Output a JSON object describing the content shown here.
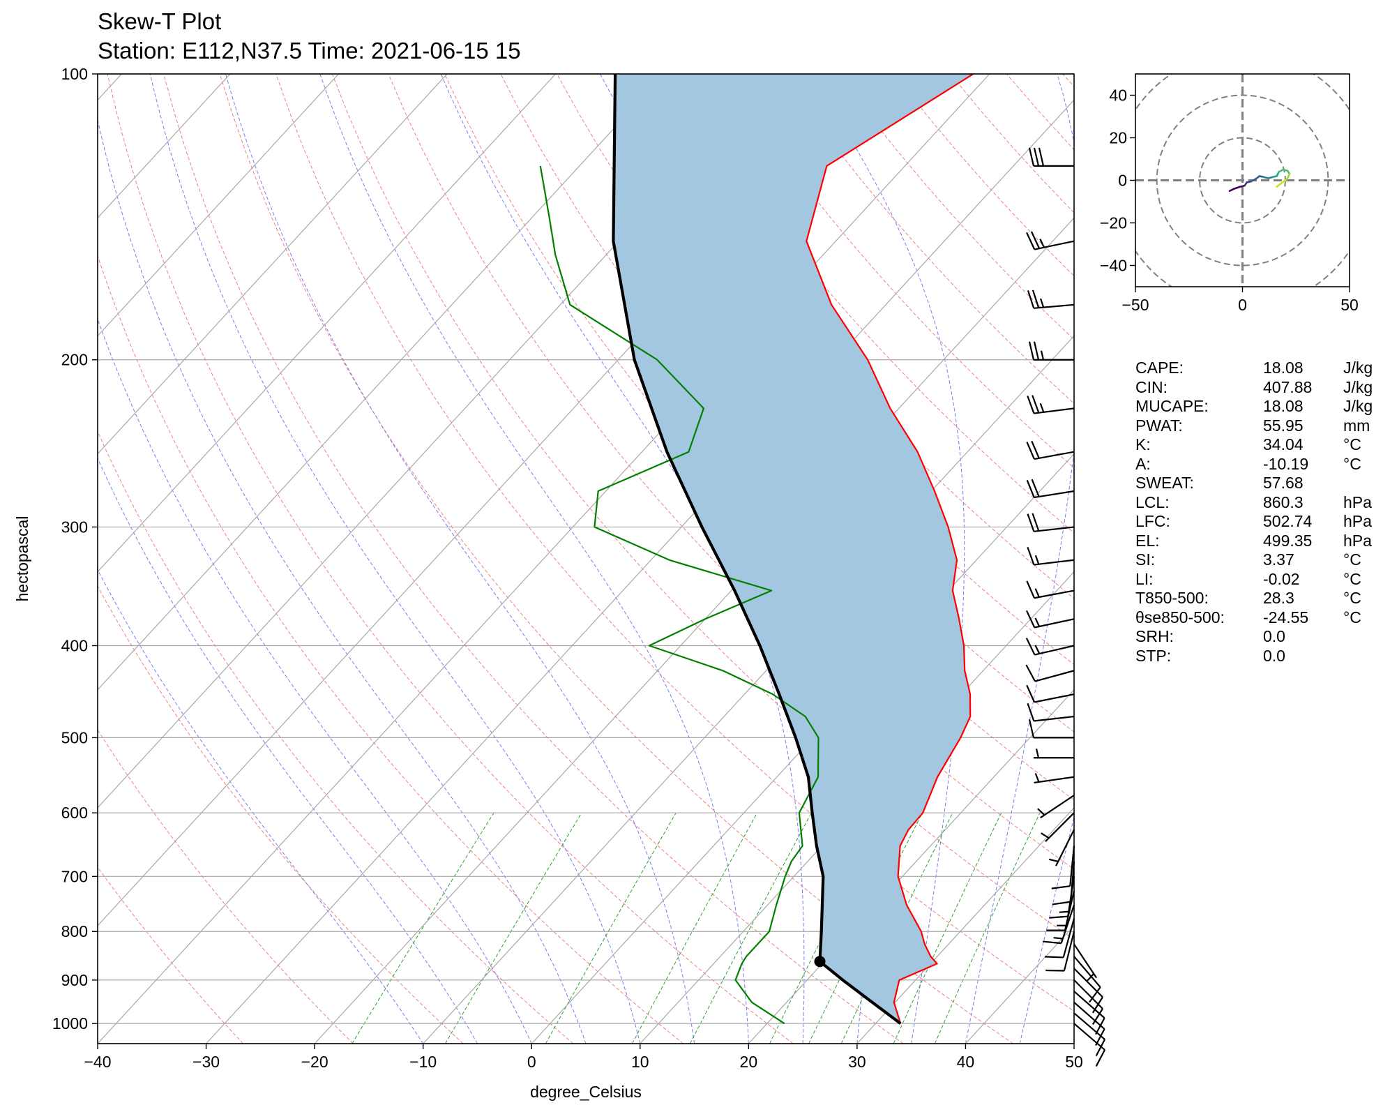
{
  "title": "Skew-T Plot",
  "subtitle": "Station: E112,N37.5 Time: 2021-06-15 15",
  "chart_data": {
    "type": "skew-t",
    "xlabel": "degree_Celsius",
    "ylabel": "hectopascal",
    "xlim": [
      -40,
      50
    ],
    "ylim": [
      1050,
      100
    ],
    "x_ticks": [
      "−40",
      "−30",
      "−20",
      "−10",
      "0",
      "10",
      "20",
      "30",
      "40",
      "50"
    ],
    "x_tick_values": [
      -40,
      -30,
      -20,
      -10,
      0,
      10,
      20,
      30,
      40,
      50
    ],
    "y_ticks": [
      "100",
      "200",
      "300",
      "400",
      "500",
      "600",
      "700",
      "800",
      "900",
      "1000"
    ],
    "y_tick_values": [
      100,
      200,
      300,
      400,
      500,
      600,
      700,
      800,
      900,
      1000
    ],
    "grid": true,
    "temperature_color": "#ff0000",
    "dewpoint_color": "#008000",
    "parcel_color": "#000000",
    "cape_fill_color": "#a3c7e0",
    "temperature": [
      {
        "p": 1000,
        "t": 32.3
      },
      {
        "p": 950,
        "t": 29.9
      },
      {
        "p": 900,
        "t": 28.5
      },
      {
        "p": 865,
        "t": 30.6
      },
      {
        "p": 850,
        "t": 29.4
      },
      {
        "p": 825,
        "t": 27.8
      },
      {
        "p": 800,
        "t": 26.4
      },
      {
        "p": 750,
        "t": 22.8
      },
      {
        "p": 700,
        "t": 19.6
      },
      {
        "p": 650,
        "t": 17.2
      },
      {
        "p": 625,
        "t": 16.6
      },
      {
        "p": 600,
        "t": 16.5
      },
      {
        "p": 550,
        "t": 14.8
      },
      {
        "p": 500,
        "t": 13.6
      },
      {
        "p": 475,
        "t": 12.7
      },
      {
        "p": 450,
        "t": 10.8
      },
      {
        "p": 425,
        "t": 8.3
      },
      {
        "p": 400,
        "t": 6.1
      },
      {
        "p": 375,
        "t": 3.4
      },
      {
        "p": 350,
        "t": 0.4
      },
      {
        "p": 325,
        "t": -1.8
      },
      {
        "p": 300,
        "t": -5.4
      },
      {
        "p": 275,
        "t": -9.7
      },
      {
        "p": 250,
        "t": -14.6
      },
      {
        "p": 225,
        "t": -20.8
      },
      {
        "p": 200,
        "t": -27.0
      },
      {
        "p": 175,
        "t": -35.0
      },
      {
        "p": 150,
        "t": -42.7
      },
      {
        "p": 125,
        "t": -47.2
      },
      {
        "p": 100,
        "t": -41.5
      }
    ],
    "dewpoint": [
      {
        "p": 1000,
        "t": 21.6
      },
      {
        "p": 950,
        "t": 16.8
      },
      {
        "p": 900,
        "t": 13.4
      },
      {
        "p": 865,
        "t": 12.6
      },
      {
        "p": 850,
        "t": 12.4
      },
      {
        "p": 825,
        "t": 12.4
      },
      {
        "p": 800,
        "t": 12.4
      },
      {
        "p": 750,
        "t": 10.8
      },
      {
        "p": 700,
        "t": 9.2
      },
      {
        "p": 675,
        "t": 8.5
      },
      {
        "p": 650,
        "t": 8.2
      },
      {
        "p": 600,
        "t": 5.1
      },
      {
        "p": 550,
        "t": 3.8
      },
      {
        "p": 500,
        "t": 0.5
      },
      {
        "p": 475,
        "t": -2.5
      },
      {
        "p": 450,
        "t": -7.4
      },
      {
        "p": 425,
        "t": -14.0
      },
      {
        "p": 400,
        "t": -22.9
      },
      {
        "p": 375,
        "t": -20.0
      },
      {
        "p": 350,
        "t": -16.3
      },
      {
        "p": 325,
        "t": -28.3
      },
      {
        "p": 300,
        "t": -38.0
      },
      {
        "p": 275,
        "t": -40.7
      },
      {
        "p": 250,
        "t": -35.7
      },
      {
        "p": 225,
        "t": -38.0
      },
      {
        "p": 200,
        "t": -46.4
      },
      {
        "p": 175,
        "t": -59.1
      },
      {
        "p": 155,
        "t": -64.7
      },
      {
        "p": 142,
        "t": -68.3
      },
      {
        "p": 125,
        "t": -73.6
      }
    ],
    "parcel": [
      {
        "p": 1000,
        "t": 32.3
      },
      {
        "p": 950,
        "t": 27.9
      },
      {
        "p": 900,
        "t": 23.3
      },
      {
        "p": 860.3,
        "t": 19.6
      },
      {
        "p": 800,
        "t": 17.2
      },
      {
        "p": 700,
        "t": 12.7
      },
      {
        "p": 650,
        "t": 9.5
      },
      {
        "p": 600,
        "t": 6.3
      },
      {
        "p": 550,
        "t": 2.9
      },
      {
        "p": 500,
        "t": -1.6
      },
      {
        "p": 450,
        "t": -6.8
      },
      {
        "p": 400,
        "t": -12.7
      },
      {
        "p": 350,
        "t": -19.7
      },
      {
        "p": 300,
        "t": -28.1
      },
      {
        "p": 250,
        "t": -37.7
      },
      {
        "p": 200,
        "t": -48.5
      },
      {
        "p": 150,
        "t": -60.5
      },
      {
        "p": 100,
        "t": -74.5
      }
    ],
    "lcl": {
      "p": 860.3,
      "t": 19.6
    },
    "hodograph": {
      "xlim": [
        -50,
        50
      ],
      "ylim": [
        -50,
        50
      ],
      "x_ticks": [
        "−50",
        "0",
        "50"
      ],
      "y_ticks": [
        "40",
        "20",
        "0",
        "−20",
        "−40"
      ],
      "rings": [
        20,
        40,
        60
      ],
      "points": [
        {
          "u": -6,
          "v": -5
        },
        {
          "u": -4,
          "v": -4
        },
        {
          "u": -1,
          "v": -3
        },
        {
          "u": 1,
          "v": -2.5
        },
        {
          "u": 2,
          "v": -1
        },
        {
          "u": 4,
          "v": -0.5
        },
        {
          "u": 6,
          "v": 0.5
        },
        {
          "u": 8,
          "v": 2
        },
        {
          "u": 10,
          "v": 1.5
        },
        {
          "u": 12,
          "v": 1
        },
        {
          "u": 14,
          "v": 1.5
        },
        {
          "u": 16,
          "v": 2
        },
        {
          "u": 17,
          "v": 4
        },
        {
          "u": 19,
          "v": 5
        },
        {
          "u": 21,
          "v": 4.5
        },
        {
          "u": 22,
          "v": 3
        },
        {
          "u": 21,
          "v": 1
        },
        {
          "u": 20,
          "v": 0
        },
        {
          "u": 18,
          "v": -1.5
        },
        {
          "u": 16,
          "v": -3
        }
      ],
      "colors": [
        "#440154",
        "#46327e",
        "#365c8d",
        "#277f8e",
        "#1fa187",
        "#4ac16d",
        "#a0da39",
        "#cfe11c"
      ]
    },
    "wind_barbs": [
      {
        "p": 1000,
        "u": -7,
        "v": 6
      },
      {
        "p": 975,
        "u": -7,
        "v": 6
      },
      {
        "p": 950,
        "u": -8,
        "v": 7
      },
      {
        "p": 925,
        "u": -8,
        "v": 7
      },
      {
        "p": 900,
        "u": -7,
        "v": 7
      },
      {
        "p": 875,
        "u": -7,
        "v": 7
      },
      {
        "p": 850,
        "u": -6,
        "v": 7
      },
      {
        "p": 825,
        "u": -4,
        "v": 6
      },
      {
        "p": 800,
        "u": 2,
        "v": 8
      },
      {
        "p": 775,
        "u": 3,
        "v": 11
      },
      {
        "p": 750,
        "u": 4,
        "v": 12
      },
      {
        "p": 725,
        "u": 3,
        "v": 13
      },
      {
        "p": 700,
        "u": 2,
        "v": 13
      },
      {
        "p": 675,
        "u": 1,
        "v": 12
      },
      {
        "p": 650,
        "u": 1,
        "v": 10
      },
      {
        "p": 625,
        "u": 3,
        "v": 6
      },
      {
        "p": 600,
        "u": 5,
        "v": 5
      },
      {
        "p": 575,
        "u": 6,
        "v": 4
      },
      {
        "p": 550,
        "u": 7,
        "v": 1
      },
      {
        "p": 525,
        "u": 7,
        "v": 0
      },
      {
        "p": 500,
        "u": 8,
        "v": 0
      },
      {
        "p": 475,
        "u": 9,
        "v": 1
      },
      {
        "p": 450,
        "u": 10,
        "v": 2
      },
      {
        "p": 425,
        "u": 11,
        "v": 3
      },
      {
        "p": 400,
        "u": 13,
        "v": 3
      },
      {
        "p": 375,
        "u": 14,
        "v": 3
      },
      {
        "p": 350,
        "u": 16,
        "v": 3
      },
      {
        "p": 325,
        "u": 17,
        "v": 2
      },
      {
        "p": 300,
        "u": 18,
        "v": 2
      },
      {
        "p": 275,
        "u": 19,
        "v": 3
      },
      {
        "p": 250,
        "u": 22,
        "v": 4
      },
      {
        "p": 225,
        "u": 24,
        "v": 3
      },
      {
        "p": 200,
        "u": 25,
        "v": 0
      },
      {
        "p": 175,
        "u": 23,
        "v": 2
      },
      {
        "p": 150,
        "u": 24,
        "v": 5
      },
      {
        "p": 125,
        "u": 28,
        "v": 0
      }
    ]
  },
  "indices": [
    {
      "name": "CAPE:",
      "value": "18.08",
      "unit": "J/kg"
    },
    {
      "name": "CIN:",
      "value": "407.88",
      "unit": "J/kg"
    },
    {
      "name": "MUCAPE:",
      "value": "18.08",
      "unit": "J/kg"
    },
    {
      "name": "PWAT:",
      "value": "55.95",
      "unit": "mm"
    },
    {
      "name": "K:",
      "value": "34.04",
      "unit": "°C"
    },
    {
      "name": "A:",
      "value": "-10.19",
      "unit": "°C"
    },
    {
      "name": "SWEAT:",
      "value": "57.68",
      "unit": ""
    },
    {
      "name": "LCL:",
      "value": "860.3",
      "unit": "hPa"
    },
    {
      "name": "LFC:",
      "value": "502.74",
      "unit": "hPa"
    },
    {
      "name": "EL:",
      "value": "499.35",
      "unit": "hPa"
    },
    {
      "name": "SI:",
      "value": "3.37",
      "unit": "°C"
    },
    {
      "name": "LI:",
      "value": "-0.02",
      "unit": "°C"
    },
    {
      "name": "T850-500:",
      "value": "28.3",
      "unit": "°C"
    },
    {
      "name": "θse850-500:",
      "value": "-24.55",
      "unit": "°C"
    },
    {
      "name": "SRH:",
      "value": "0.0",
      "unit": ""
    },
    {
      "name": "STP:",
      "value": "0.0",
      "unit": ""
    }
  ]
}
